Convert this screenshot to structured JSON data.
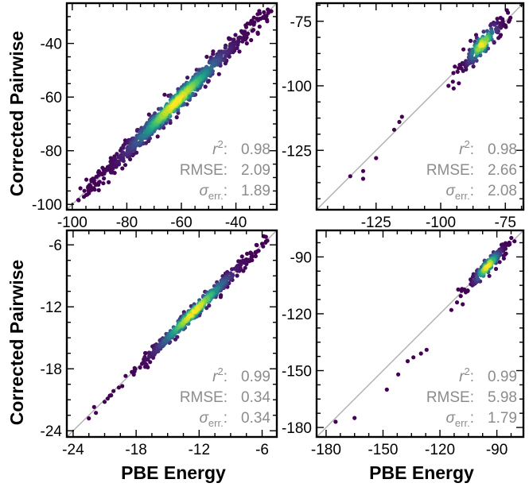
{
  "figure": {
    "xlabel": "PBE Energy",
    "ylabel": "Corrected Pairwise",
    "stat_labels": {
      "r2": "r",
      "r2_sup": "2",
      "rmse": "RMSE",
      "sigma": "σ",
      "sigma_sub": "err."
    }
  },
  "chart_data": [
    {
      "type": "scatter",
      "xlabel": "",
      "ylabel": "Corrected Pairwise",
      "xlim": [
        -102,
        -25
      ],
      "ylim": [
        -102,
        -25
      ],
      "xticks": [
        -100,
        -80,
        -60,
        -40
      ],
      "yticks": [
        -100,
        -80,
        -60,
        -40
      ],
      "xtick_labels": [
        "-100",
        "-80",
        "-60",
        "-40"
      ],
      "ytick_labels": [
        "-100",
        "-80",
        "-60",
        "-40"
      ],
      "diagonal": true,
      "stats": {
        "r2": "0.98",
        "rmse": "2.09",
        "sigma": "1.89"
      },
      "cluster": {
        "x_range": [
          -98,
          -28
        ],
        "center": -62,
        "spread": 16,
        "noise": 1.9,
        "count": 850,
        "outliers": [
          [
            -97,
            -94
          ],
          [
            -94,
            -95
          ],
          [
            -92,
            -91
          ],
          [
            -88,
            -87
          ],
          [
            -85,
            -84
          ],
          [
            -27,
            -28
          ],
          [
            -32,
            -36
          ],
          [
            -36,
            -40
          ],
          [
            -45,
            -46
          ],
          [
            -50,
            -54
          ]
        ]
      }
    },
    {
      "type": "scatter",
      "xlabel": "",
      "ylabel": "",
      "xlim": [
        -148,
        -68
      ],
      "ylim": [
        -148,
        -68
      ],
      "xticks": [
        -125,
        -100,
        -75
      ],
      "yticks": [
        -125,
        -100,
        -75
      ],
      "xtick_labels": [
        "-125",
        "-100",
        "-75"
      ],
      "ytick_labels": [
        "-125",
        "-100",
        "-75"
      ],
      "diagonal": true,
      "stats": {
        "r2": "0.98",
        "rmse": "2.66",
        "sigma": "2.08"
      },
      "cluster": {
        "x_range": [
          -98,
          -72
        ],
        "center": -84,
        "spread": 5,
        "noise": 2.0,
        "count": 160,
        "outliers": [
          [
            -135,
            -135
          ],
          [
            -130,
            -133
          ],
          [
            -130,
            -136
          ],
          [
            -125,
            -128
          ],
          [
            -118,
            -117
          ],
          [
            -116,
            -114
          ],
          [
            -115,
            -112
          ],
          [
            -97,
            -100
          ],
          [
            -95,
            -101
          ],
          [
            -93,
            -99
          ]
        ]
      }
    },
    {
      "type": "scatter",
      "xlabel": "PBE Energy",
      "ylabel": "Corrected Pairwise",
      "xlim": [
        -24.6,
        -4.6
      ],
      "ylim": [
        -24.6,
        -4.6
      ],
      "xticks": [
        -24,
        -18,
        -12,
        -6
      ],
      "yticks": [
        -24,
        -18,
        -12,
        -6
      ],
      "xtick_labels": [
        "-24",
        "-18",
        "-12",
        "-6"
      ],
      "ytick_labels": [
        "-24",
        "-18",
        "-12",
        "-6"
      ],
      "diagonal": true,
      "stats": {
        "r2": "0.99",
        "rmse": "0.34",
        "sigma": "0.34"
      },
      "cluster": {
        "x_range": [
          -22,
          -5.5
        ],
        "center": -12.5,
        "spread": 3.2,
        "noise": 0.35,
        "count": 420,
        "outliers": [
          [
            -22.5,
            -22.8
          ],
          [
            -22,
            -21.7
          ],
          [
            -21,
            -21.2
          ],
          [
            -20.5,
            -20.6
          ],
          [
            -6,
            -5.9
          ],
          [
            -5.5,
            -5.6
          ]
        ]
      }
    },
    {
      "type": "scatter",
      "xlabel": "PBE Energy",
      "ylabel": "",
      "xlim": [
        -185,
        -76
      ],
      "ylim": [
        -185,
        -76
      ],
      "xticks": [
        -180,
        -150,
        -120,
        -90
      ],
      "yticks": [
        -180,
        -150,
        -120,
        -90
      ],
      "xtick_labels": [
        "-180",
        "-150",
        "-120",
        "-90"
      ],
      "ytick_labels": [
        "-180",
        "-150",
        "-120",
        "-90"
      ],
      "diagonal": true,
      "stats": {
        "r2": "0.99",
        "rmse": "5.98",
        "sigma": "1.79"
      },
      "cluster": {
        "x_range": [
          -112,
          -80
        ],
        "center": -95,
        "spread": 6,
        "noise": 2.0,
        "count": 160,
        "outliers": [
          [
            -175,
            -177
          ],
          [
            -165,
            -175
          ],
          [
            -148,
            -160
          ],
          [
            -142,
            -152
          ],
          [
            -137,
            -145
          ],
          [
            -134,
            -143
          ],
          [
            -130,
            -141
          ],
          [
            -127,
            -139
          ],
          [
            -114,
            -118
          ],
          [
            -111,
            -114
          ],
          [
            -108,
            -115
          ]
        ]
      }
    }
  ]
}
